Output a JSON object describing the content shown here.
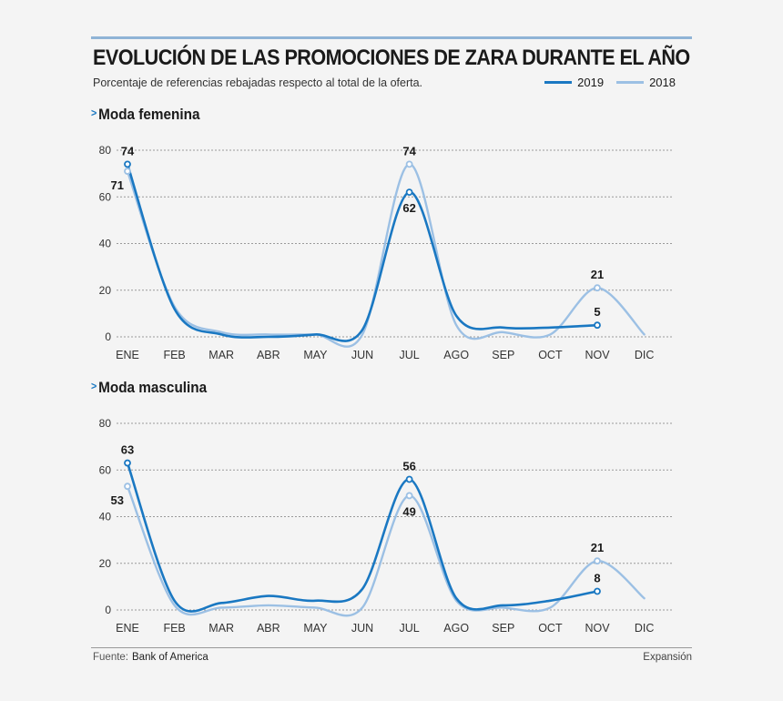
{
  "title": "EVOLUCIÓN DE LAS PROMOCIONES DE ZARA DURANTE EL AÑO",
  "subtitle": "Porcentaje de referencias rebajadas respecto al total de la oferta.",
  "legend": [
    {
      "name": "2019",
      "color": "#1a78c2"
    },
    {
      "name": "2018",
      "color": "#9cc0e4"
    }
  ],
  "chart_data": [
    {
      "type": "line",
      "title": "Moda femenina",
      "categories": [
        "ENE",
        "FEB",
        "MAR",
        "ABR",
        "MAY",
        "JUN",
        "JUL",
        "AGO",
        "SEP",
        "OCT",
        "NOV",
        "DIC"
      ],
      "ylim": [
        0,
        80
      ],
      "yticks": [
        0,
        20,
        40,
        60,
        80
      ],
      "grid": true,
      "series": [
        {
          "name": "2019",
          "color": "#1a78c2",
          "values": [
            74,
            12,
            1,
            0,
            1,
            3,
            62,
            9,
            4,
            4,
            5,
            null
          ]
        },
        {
          "name": "2018",
          "color": "#9cc0e4",
          "values": [
            71,
            13,
            2,
            1,
            1,
            1,
            74,
            5,
            2,
            1,
            21,
            1
          ]
        }
      ],
      "data_labels": [
        {
          "series": "2019",
          "index": 0,
          "text": "74",
          "pos": "above"
        },
        {
          "series": "2018",
          "index": 0,
          "text": "71",
          "pos": "left"
        },
        {
          "series": "2018",
          "index": 6,
          "text": "74",
          "pos": "above"
        },
        {
          "series": "2019",
          "index": 6,
          "text": "62",
          "pos": "below"
        },
        {
          "series": "2018",
          "index": 10,
          "text": "21",
          "pos": "above"
        },
        {
          "series": "2019",
          "index": 10,
          "text": "5",
          "pos": "above"
        }
      ]
    },
    {
      "type": "line",
      "title": "Moda masculina",
      "categories": [
        "ENE",
        "FEB",
        "MAR",
        "ABR",
        "MAY",
        "JUN",
        "JUL",
        "AGO",
        "SEP",
        "OCT",
        "NOV",
        "DIC"
      ],
      "ylim": [
        0,
        80
      ],
      "yticks": [
        0,
        20,
        40,
        60,
        80
      ],
      "grid": true,
      "series": [
        {
          "name": "2019",
          "color": "#1a78c2",
          "values": [
            63,
            4,
            3,
            6,
            4,
            9,
            56,
            5,
            2,
            4,
            8,
            null
          ]
        },
        {
          "name": "2018",
          "color": "#9cc0e4",
          "values": [
            53,
            2,
            1,
            2,
            1,
            1,
            49,
            4,
            1,
            1,
            21,
            5
          ]
        }
      ],
      "data_labels": [
        {
          "series": "2019",
          "index": 0,
          "text": "63",
          "pos": "above"
        },
        {
          "series": "2018",
          "index": 0,
          "text": "53",
          "pos": "left"
        },
        {
          "series": "2019",
          "index": 6,
          "text": "56",
          "pos": "above"
        },
        {
          "series": "2018",
          "index": 6,
          "text": "49",
          "pos": "below"
        },
        {
          "series": "2018",
          "index": 10,
          "text": "21",
          "pos": "above"
        },
        {
          "series": "2019",
          "index": 10,
          "text": "8",
          "pos": "above"
        }
      ]
    }
  ],
  "footer": {
    "source_label": "Fuente:",
    "source": "Bank of America",
    "credit": "Expansión"
  }
}
